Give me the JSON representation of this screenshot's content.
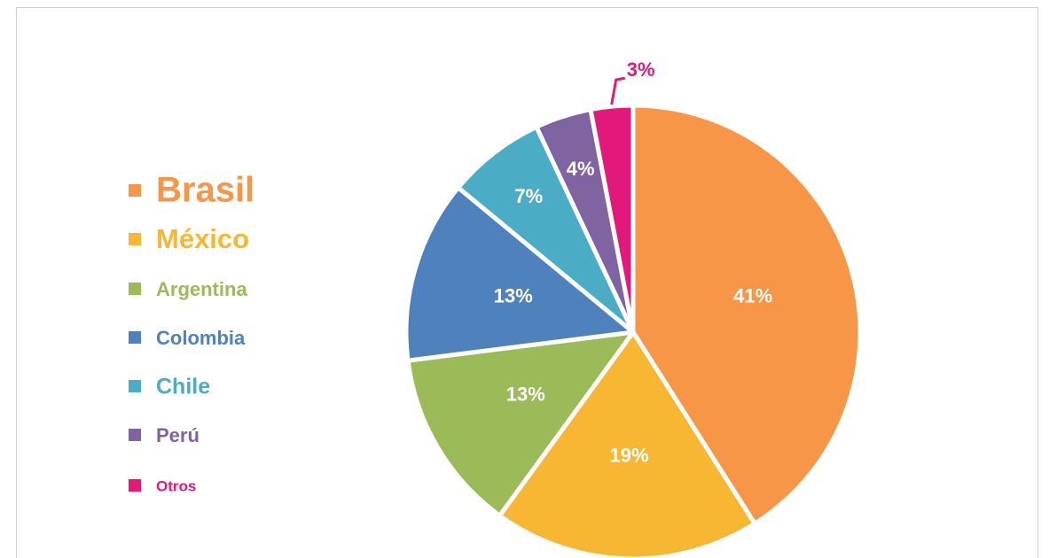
{
  "chart_data": {
    "type": "pie",
    "categories": [
      "Brasil",
      "México",
      "Argentina",
      "Colombia",
      "Chile",
      "Perú",
      "Otros"
    ],
    "values": [
      41,
      19,
      13,
      13,
      7,
      4,
      3
    ],
    "value_labels": [
      "41%",
      "19%",
      "13%",
      "13%",
      "7%",
      "4%",
      "3%"
    ],
    "colors": [
      "#f79646",
      "#f7b733",
      "#9bbb59",
      "#4f81bd",
      "#4bacc6",
      "#8064a2",
      "#e0197a"
    ],
    "legend": "left"
  }
}
